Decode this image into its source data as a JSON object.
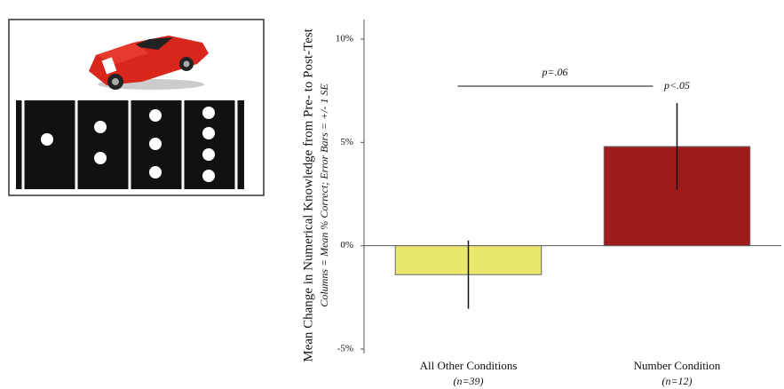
{
  "chart_data": {
    "type": "bar",
    "y_label": "Mean Change in Numerical  Knowledge from Pre- to Post-Test",
    "y_sublabel": "Columns = Mean % Correct; Error Bars = +/- 1 SE",
    "categories": [
      "All Other Conditions",
      "Number Condition"
    ],
    "category_notes": [
      "(n=39)",
      "(n=12)"
    ],
    "values": [
      -1.4,
      4.8
    ],
    "errors": [
      1.65,
      2.1
    ],
    "colors": [
      "#ebe86e",
      "#a01c1c"
    ],
    "ylim": [
      -5,
      10
    ],
    "yticks": [
      {
        "value": -5,
        "label": "-5%"
      },
      {
        "value": 0,
        "label": "0%"
      },
      {
        "value": 5,
        "label": "5%"
      },
      {
        "value": 10,
        "label": "10%"
      }
    ],
    "annotations": [
      "p=.06",
      "p<.05"
    ]
  }
}
